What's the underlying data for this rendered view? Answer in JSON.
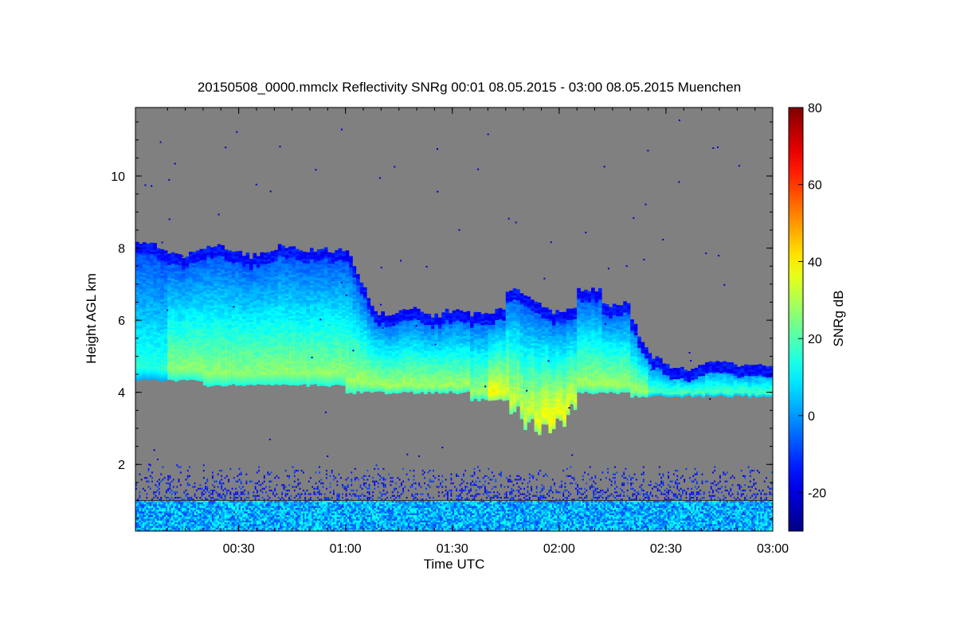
{
  "chart_data": {
    "type": "heatmap",
    "title": "20150508_0000.mmclx Reflectivity SNRg   00:01 08.05.2015 - 03:00 08.05.2015 Muenchen",
    "xlabel": "Time UTC",
    "ylabel": "Height AGL km",
    "colorbar_label": "SNRg dB",
    "x_range": [
      "00:01",
      "03:00"
    ],
    "x_ticks": [
      "00:30",
      "01:00",
      "01:30",
      "02:00",
      "02:30",
      "03:00"
    ],
    "y_range_km": [
      0.15,
      11.9
    ],
    "y_ticks": [
      "2",
      "4",
      "6",
      "8",
      "10"
    ],
    "color_range_db": [
      -30,
      80
    ],
    "color_ticks": [
      "-20",
      "0",
      "20",
      "40",
      "60",
      "80"
    ],
    "background_color": "#808080",
    "colormap": "jet",
    "features": [
      {
        "name": "cloud layer",
        "time_range": [
          "00:01",
          "02:15"
        ],
        "base_km": 3.9,
        "top_km_range": [
          5.4,
          8.3
        ],
        "max_snr_db": 45
      },
      {
        "name": "thin cloud layer",
        "time_range": [
          "02:15",
          "03:00"
        ],
        "base_km": 3.9,
        "top_km_range": [
          4.5,
          4.8
        ],
        "max_snr_db": 30
      },
      {
        "name": "near-surface clutter",
        "time_range": [
          "00:01",
          "03:00"
        ],
        "base_km": 0.15,
        "top_km_range": [
          1.0,
          1.5
        ],
        "max_snr_db": 15
      }
    ]
  }
}
